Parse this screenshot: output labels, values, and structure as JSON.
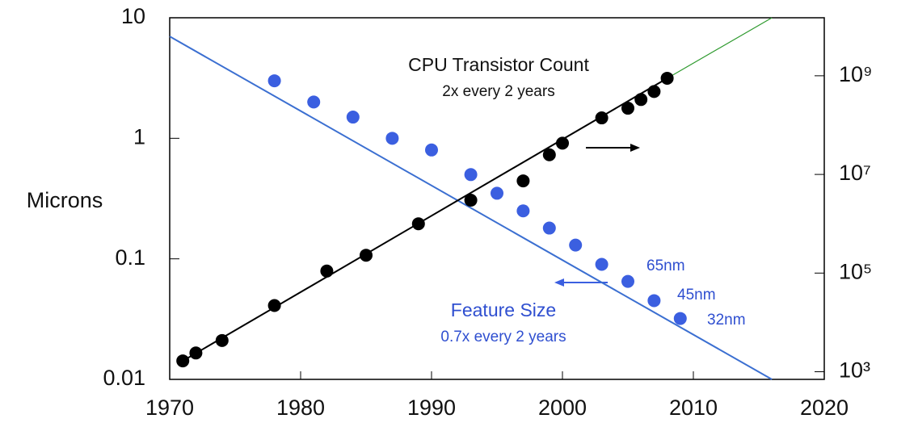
{
  "chart_data": {
    "type": "scatter",
    "y_label": "Microns",
    "xlim": [
      1970,
      2020
    ],
    "xticks": [
      1970,
      1980,
      1990,
      2000,
      2010,
      2020
    ],
    "ylim": [
      0.01,
      10
    ],
    "yticks": [
      10,
      1,
      0.1,
      0.01
    ],
    "y_log": true,
    "y2lim": [
      700,
      15000000000
    ],
    "y2ticks": [
      {
        "value": 1000,
        "label": "10³"
      },
      {
        "value": 100000,
        "label": "10⁵"
      },
      {
        "value": 10000000,
        "label": "10⁷"
      },
      {
        "value": 1000000000,
        "label": "10⁹"
      }
    ],
    "y2_log": true,
    "series": [
      {
        "name": "Feature Size",
        "color": "#3b5fe0",
        "axis": "y",
        "x": [
          1978,
          1981,
          1984,
          1987,
          1990,
          1993,
          1995,
          1997,
          1999,
          2001,
          2003,
          2005,
          2007,
          2009
        ],
        "values": [
          3,
          2,
          1.5,
          1,
          0.8,
          0.5,
          0.35,
          0.25,
          0.18,
          0.13,
          0.09,
          0.065,
          0.045,
          0.032
        ]
      },
      {
        "name": "CPU Transistor Count",
        "color": "#000000",
        "axis": "y2",
        "x": [
          1971,
          1972,
          1974,
          1978,
          1982,
          1985,
          1989,
          1993,
          1997,
          1999,
          2000,
          2003,
          2005,
          2006,
          2007,
          2008
        ],
        "values": [
          1660,
          2400,
          4300,
          22000,
          110000,
          230000,
          1000000,
          3000000,
          7400000,
          25000000,
          43000000,
          140000000,
          220000000,
          330000000,
          480000000,
          890000000
        ]
      }
    ],
    "trend_lines": [
      {
        "color": "#3b6fd1",
        "axis": "y",
        "x": [
          1970,
          2016
        ],
        "values": [
          7,
          0.01
        ]
      },
      {
        "color": "#000000",
        "axis": "y2",
        "x": [
          1971,
          2008
        ],
        "values": [
          1660,
          890000000
        ]
      },
      {
        "color": "#2e9a2e",
        "axis": "y2",
        "x": [
          2008,
          2016
        ],
        "values": [
          890000000,
          15000000000
        ]
      }
    ],
    "annotations": [
      "2x every 2 years",
      "0.7x every 2 years"
    ],
    "node_labels": [
      "65nm",
      "45nm",
      "32nm"
    ]
  }
}
